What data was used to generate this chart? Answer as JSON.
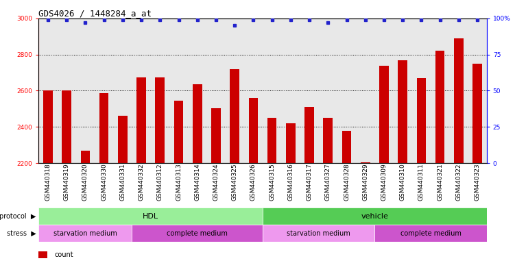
{
  "title": "GDS4026 / 1448284_a_at",
  "samples": [
    "GSM440318",
    "GSM440319",
    "GSM440320",
    "GSM440330",
    "GSM440331",
    "GSM440332",
    "GSM440312",
    "GSM440313",
    "GSM440314",
    "GSM440324",
    "GSM440325",
    "GSM440326",
    "GSM440315",
    "GSM440316",
    "GSM440317",
    "GSM440327",
    "GSM440328",
    "GSM440329",
    "GSM440309",
    "GSM440310",
    "GSM440311",
    "GSM440321",
    "GSM440322",
    "GSM440323"
  ],
  "counts": [
    2600,
    2600,
    2270,
    2585,
    2460,
    2675,
    2675,
    2545,
    2635,
    2505,
    2720,
    2560,
    2450,
    2420,
    2510,
    2450,
    2380,
    2205,
    2740,
    2770,
    2670,
    2820,
    2890,
    2750
  ],
  "percentile_ranks": [
    99,
    99,
    97,
    99,
    99,
    99,
    99,
    99,
    99,
    99,
    95,
    99,
    99,
    99,
    99,
    97,
    99,
    99,
    99,
    99,
    99,
    99,
    99,
    99
  ],
  "bar_color": "#cc0000",
  "dot_color": "#2222cc",
  "ylim_left": [
    2200,
    3000
  ],
  "ylim_right": [
    0,
    100
  ],
  "yticks_left": [
    2200,
    2400,
    2600,
    2800,
    3000
  ],
  "yticks_right": [
    0,
    25,
    50,
    75,
    100
  ],
  "ytick_labels_right": [
    "0",
    "25",
    "50",
    "75",
    "100%"
  ],
  "hdl_color": "#99ee99",
  "vehicle_color": "#55cc55",
  "starvation_color": "#ee99ee",
  "complete_color": "#cc55cc",
  "stress_ranges": [
    [
      0,
      5
    ],
    [
      5,
      12
    ],
    [
      12,
      18
    ],
    [
      18,
      24
    ]
  ],
  "stress_labels": [
    "starvation medium",
    "complete medium",
    "starvation medium",
    "complete medium"
  ],
  "stress_colors": [
    "#ee99ee",
    "#cc55cc",
    "#ee99ee",
    "#cc55cc"
  ],
  "background_color": "#e8e8e8",
  "title_fontsize": 9,
  "tick_fontsize": 6.5,
  "bar_width": 0.5
}
